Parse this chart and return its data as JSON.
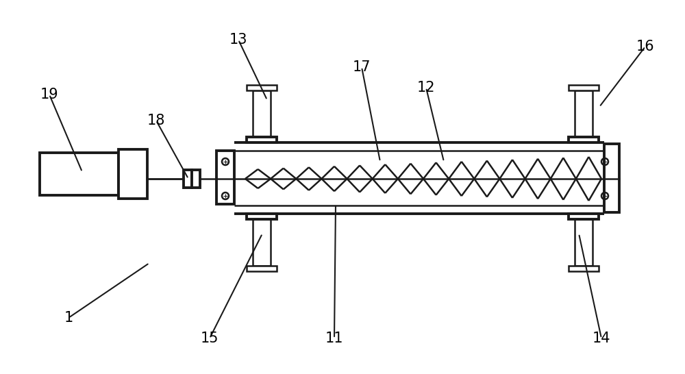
{
  "bg_color": "#ffffff",
  "lc": "#1a1a1a",
  "lw": 1.8,
  "tlw": 2.8,
  "annotations": [
    [
      "19",
      72,
      408,
      120,
      295
    ],
    [
      "18",
      228,
      370,
      275,
      285
    ],
    [
      "13",
      348,
      488,
      390,
      400
    ],
    [
      "17",
      528,
      448,
      555,
      310
    ],
    [
      "12",
      622,
      418,
      648,
      310
    ],
    [
      "16",
      942,
      478,
      875,
      390
    ],
    [
      "11",
      488,
      52,
      490,
      248
    ],
    [
      "15",
      306,
      52,
      383,
      205
    ],
    [
      "14",
      878,
      52,
      845,
      205
    ],
    [
      "1",
      100,
      82,
      218,
      162
    ]
  ]
}
